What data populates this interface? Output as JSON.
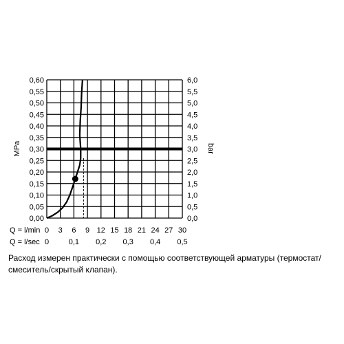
{
  "chart_data": {
    "type": "line",
    "ylabel_left": "MPa",
    "ylabel_right": "bar",
    "y_left_ticks": [
      "0,00",
      "0,05",
      "0,10",
      "0,15",
      "0,20",
      "0,25",
      "0,30",
      "0,35",
      "0,40",
      "0,45",
      "0,50",
      "0,55",
      "0,60"
    ],
    "y_right_ticks": [
      "0,0",
      "0,5",
      "1,0",
      "1,5",
      "2,0",
      "2,5",
      "3,0",
      "3,5",
      "4,0",
      "4,5",
      "5,0",
      "5,5",
      "6,0"
    ],
    "ylim": [
      0,
      0.6
    ],
    "xlim": [
      0,
      30
    ],
    "x_axis_lpm": {
      "label": "Q = l/min",
      "ticks": [
        "0",
        "3",
        "6",
        "9",
        "12",
        "15",
        "18",
        "21",
        "24",
        "27",
        "30"
      ]
    },
    "x_axis_lps": {
      "label": "Q = l/sec",
      "ticks": [
        {
          "value": 0,
          "label": "0"
        },
        {
          "value": 0.1,
          "label": "0,1"
        },
        {
          "value": 0.2,
          "label": "0,2"
        },
        {
          "value": 0.3,
          "label": "0,3"
        },
        {
          "value": 0.4,
          "label": "0,4"
        },
        {
          "value": 0.5,
          "label": "0,5"
        }
      ]
    },
    "grid": true,
    "reference_line_y": 0.3,
    "marker_point": {
      "x": 6.3,
      "y": 0.17
    },
    "series": [
      {
        "points": [
          [
            0,
            0
          ],
          [
            1.2,
            0.01
          ],
          [
            2.4,
            0.025
          ],
          [
            3.5,
            0.045
          ],
          [
            4.4,
            0.07
          ],
          [
            5.1,
            0.1
          ],
          [
            5.8,
            0.14
          ],
          [
            6.3,
            0.17
          ],
          [
            6.8,
            0.2
          ],
          [
            7.3,
            0.23
          ],
          [
            7.5,
            0.26
          ],
          [
            7.5,
            0.3
          ],
          [
            7.3,
            0.36
          ],
          [
            7.4,
            0.42
          ],
          [
            7.6,
            0.48
          ],
          [
            7.7,
            0.54
          ],
          [
            7.9,
            0.6
          ]
        ]
      }
    ]
  },
  "caption": "Расход измерен практически с помощью соответствующей арматуры (термостат/смеситель/скрытый клапан)."
}
